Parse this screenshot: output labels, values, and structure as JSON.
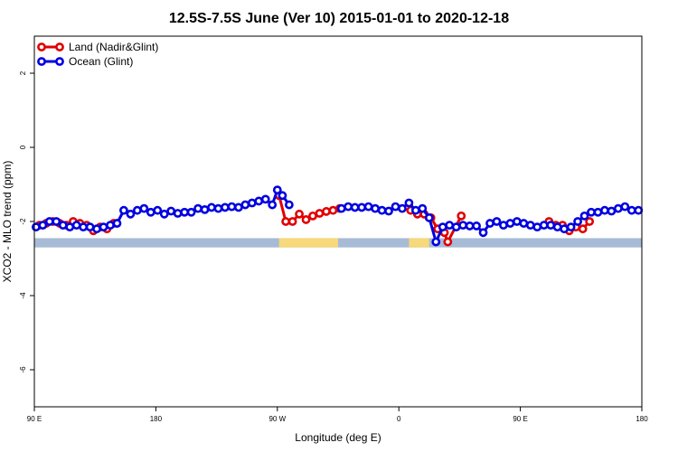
{
  "chart_data": {
    "type": "line",
    "title": "12.5S-7.5S June (Ver 10)   2015-01-01 to 2020-12-18",
    "xlabel": "Longitude (deg E)",
    "ylabel": "XCO2 - MLO trend (ppm)",
    "xlim": [
      90,
      450
    ],
    "ylim": [
      -7,
      3
    ],
    "x_ticks": [
      {
        "value": 90,
        "label": "90 E"
      },
      {
        "value": 162,
        "label": "180"
      },
      {
        "value": 234,
        "label": "90 W"
      },
      {
        "value": 306,
        "label": "0"
      },
      {
        "value": 378,
        "label": "90 E"
      },
      {
        "value": 450,
        "label": "180"
      }
    ],
    "y_ticks": [
      {
        "value": 2,
        "label": "2"
      },
      {
        "value": 0,
        "label": "0"
      },
      {
        "value": -2,
        "label": "-2"
      },
      {
        "value": -4,
        "label": "-4"
      },
      {
        "value": -6,
        "label": "-6"
      }
    ],
    "grid": false,
    "legend_position": "top-left",
    "land_band": {
      "y_range": [
        -2.7,
        -2.45
      ],
      "ocean_color": "#a7bbd6",
      "land_color": "#f7d87a",
      "land_segments": [
        [
          235,
          270
        ],
        [
          312,
          324
        ]
      ]
    },
    "series": [
      {
        "name": "Land (Nadir&Glint)",
        "color": "#e00000",
        "x": [
          93,
          97,
          101,
          105,
          109,
          113,
          117,
          121,
          125,
          129,
          133,
          137,
          235,
          239,
          243,
          247,
          251,
          255,
          259,
          263,
          267,
          271,
          313,
          317,
          321,
          325,
          329,
          333,
          335,
          343,
          395,
          399,
          403,
          407,
          411,
          415,
          419
        ],
        "values": [
          -2.1,
          -2.05,
          -2.0,
          -2.05,
          -2.1,
          -2.0,
          -2.05,
          -2.1,
          -2.25,
          -2.15,
          -2.2,
          -2.05,
          -1.3,
          -2.0,
          -2.0,
          -1.8,
          -1.95,
          -1.85,
          -1.78,
          -1.73,
          -1.7,
          -1.65,
          -1.7,
          -1.8,
          -1.8,
          -1.9,
          -2.2,
          -2.3,
          -2.55,
          -1.85,
          -2.0,
          -2.1,
          -2.1,
          -2.25,
          -2.15,
          -2.2,
          -2.0
        ]
      },
      {
        "name": "Ocean (Glint)",
        "color": "#0000e0",
        "x": [
          91,
          95,
          99,
          103,
          107,
          111,
          115,
          119,
          123,
          127,
          131,
          135,
          139,
          143,
          147,
          151,
          155,
          159,
          163,
          167,
          171,
          175,
          179,
          183,
          187,
          191,
          195,
          199,
          203,
          207,
          211,
          215,
          219,
          223,
          227,
          231,
          234,
          237,
          241,
          272,
          276,
          280,
          284,
          288,
          292,
          296,
          300,
          304,
          308,
          312,
          316,
          320,
          324,
          328,
          332,
          336,
          340,
          344,
          348,
          352,
          356,
          360,
          364,
          368,
          372,
          376,
          380,
          384,
          388,
          392,
          396,
          400,
          404,
          408,
          412,
          416,
          420,
          424,
          428,
          432,
          436,
          440,
          444,
          448
        ],
        "values": [
          -2.15,
          -2.1,
          -2.0,
          -2.0,
          -2.1,
          -2.15,
          -2.1,
          -2.15,
          -2.15,
          -2.2,
          -2.15,
          -2.1,
          -2.05,
          -1.7,
          -1.8,
          -1.7,
          -1.65,
          -1.75,
          -1.7,
          -1.8,
          -1.72,
          -1.78,
          -1.75,
          -1.75,
          -1.65,
          -1.68,
          -1.62,
          -1.65,
          -1.62,
          -1.6,
          -1.62,
          -1.55,
          -1.5,
          -1.45,
          -1.4,
          -1.55,
          -1.15,
          -1.3,
          -1.55,
          -1.65,
          -1.6,
          -1.62,
          -1.62,
          -1.6,
          -1.65,
          -1.7,
          -1.72,
          -1.6,
          -1.65,
          -1.5,
          -1.7,
          -1.65,
          -1.9,
          -2.55,
          -2.15,
          -2.1,
          -2.15,
          -2.1,
          -2.12,
          -2.12,
          -2.3,
          -2.05,
          -2.0,
          -2.1,
          -2.05,
          -2.0,
          -2.05,
          -2.1,
          -2.15,
          -2.1,
          -2.1,
          -2.15,
          -2.2,
          -2.15,
          -2.0,
          -1.85,
          -1.75,
          -1.75,
          -1.7,
          -1.72,
          -1.65,
          -1.6,
          -1.7,
          -1.7
        ]
      }
    ]
  }
}
